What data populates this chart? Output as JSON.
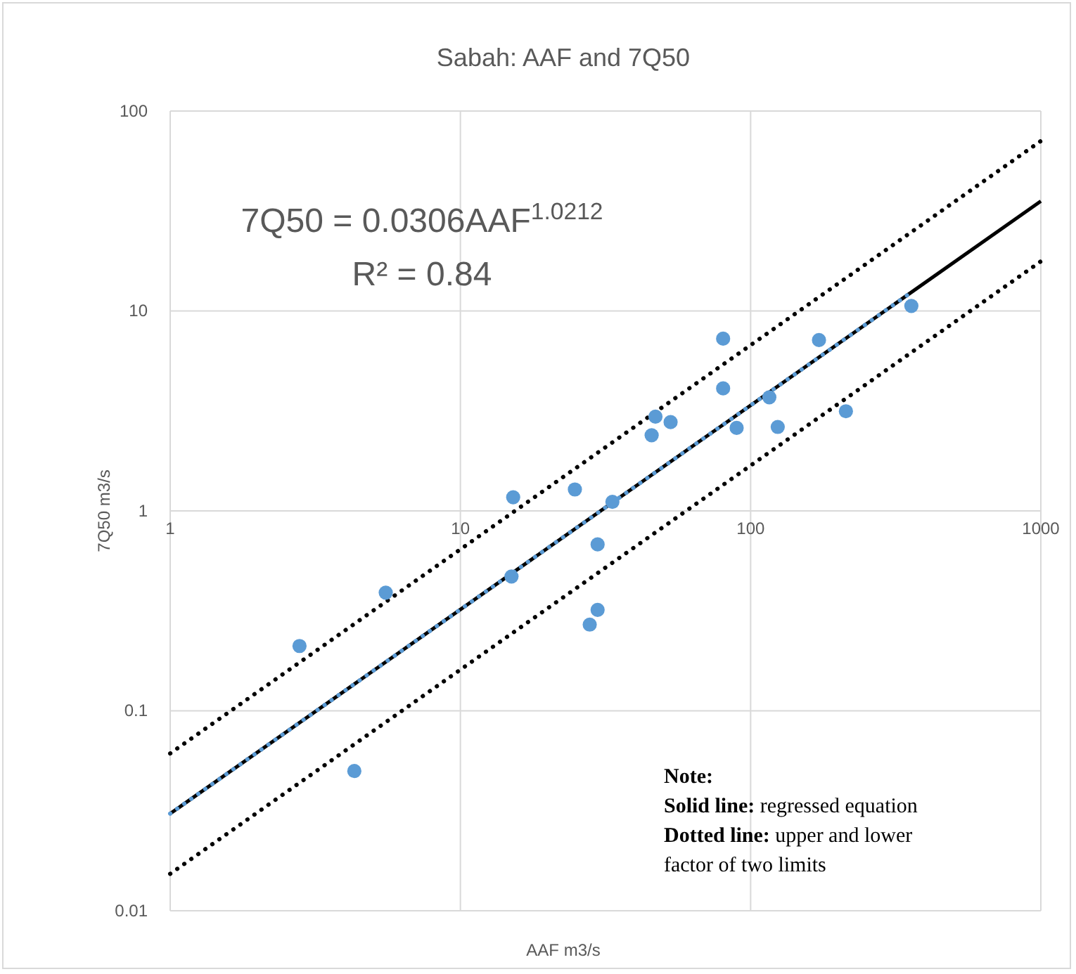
{
  "chart_data": {
    "type": "scatter",
    "title": "Sabah: AAF and 7Q50",
    "xlabel": "AAF m3/s",
    "ylabel": "7Q50 m3/s",
    "log": "xy",
    "grid": true,
    "xlim": [
      1,
      1000
    ],
    "xticks": [
      1,
      10,
      100,
      1000
    ],
    "ylim": [
      0.01,
      100
    ],
    "yticks": [
      0.01,
      0.1,
      1,
      10,
      100
    ],
    "series": [
      {
        "color": "#5b9bd5",
        "marker": "circle",
        "x": [
          2.79,
          4.31,
          5.53,
          15.2,
          15.0,
          24.8,
          33.4,
          29.7,
          29.7,
          27.9,
          47,
          45.6,
          53,
          80.4,
          80.4,
          89.5,
          116,
          124,
          172,
          213,
          358
        ],
        "values": [
          0.211,
          0.05,
          0.39,
          1.17,
          0.47,
          1.28,
          1.11,
          0.68,
          0.32,
          0.27,
          2.96,
          2.39,
          2.78,
          7.27,
          4.1,
          2.6,
          3.7,
          2.63,
          7.15,
          3.15,
          10.6
        ]
      },
      {
        "type": "line",
        "color": "#000000",
        "line_style": "solid",
        "x": [
          1,
          1000
        ],
        "values": [
          0.0306,
          35.4
        ]
      },
      {
        "type": "line",
        "color": "#5b9bd5",
        "line_style": "dotted",
        "x": [
          1,
          358
        ],
        "values": [
          0.0306,
          12.4
        ]
      },
      {
        "type": "line",
        "color": "#000000",
        "line_style": "dotted",
        "x": [
          1,
          1000
        ],
        "values": [
          0.0612,
          70.8
        ]
      },
      {
        "type": "line",
        "color": "#000000",
        "line_style": "dotted",
        "x": [
          1,
          1000
        ],
        "values": [
          0.0153,
          17.7
        ]
      }
    ],
    "annotations": [
      "7Q50 = 0.0306AAF$^{1.0212}$",
      "R² = 0.84",
      "Note:",
      "Solid line: regressed equation",
      "Dotted line: upper and lower factor of two limits"
    ]
  }
}
